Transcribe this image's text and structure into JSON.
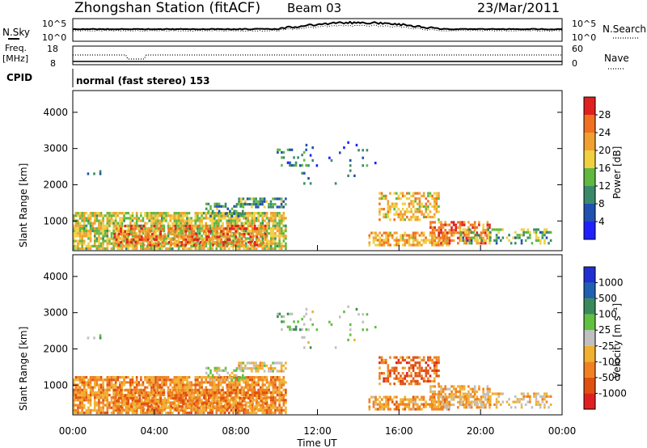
{
  "header": {
    "title": "Zhongshan Station (fitACF)",
    "beam": "Beam 03",
    "date": "23/Mar/2011"
  },
  "strip_labels": {
    "nsky": "N.Sky",
    "nsky_top": "10^5",
    "nsky_bottom": "10^0",
    "nsearch": "N.Search",
    "nsearch_top": "10^5",
    "nsearch_bottom": "10^0",
    "freq_line1": "Freq.",
    "freq_line2": "[MHz]",
    "freq_top": "18",
    "freq_bottom": "8",
    "nave": "Nave",
    "nave_top": "60",
    "nave_bottom": "0",
    "cpid": "CPID",
    "cpid_value": "normal (fast stereo) 153"
  },
  "chart_data": [
    {
      "type": "heatmap",
      "name": "power",
      "ylabel": "Slant Range [km]",
      "yticks": [
        "1000",
        "2000",
        "3000",
        "4000"
      ],
      "ytick_values": [
        1000,
        2000,
        3000,
        4000
      ],
      "ylim": [
        180,
        4600
      ],
      "colorbar_label": "Power [dB]",
      "colorbar_ticks": [
        "4",
        "8",
        "12",
        "16",
        "20",
        "24",
        "28"
      ],
      "colorbar_tick_values": [
        4,
        8,
        12,
        16,
        20,
        24,
        28
      ],
      "colors": [
        "#2020ff",
        "#2050b0",
        "#3a8a6a",
        "#60b840",
        "#f0d040",
        "#f0a030",
        "#f07020",
        "#e02020"
      ],
      "scale": [
        0,
        32
      ]
    },
    {
      "type": "heatmap",
      "name": "velocity",
      "ylabel": "Slant Range [km]",
      "yticks": [
        "1000",
        "2000",
        "3000",
        "4000"
      ],
      "ytick_values": [
        1000,
        2000,
        3000,
        4000
      ],
      "ylim": [
        180,
        4600
      ],
      "colorbar_label": "Velocity [m s⁻¹]",
      "colorbar_ticks": [
        "1000",
        "500",
        "100",
        "25",
        "-25",
        "-100",
        "-500",
        "-1000"
      ],
      "colors": [
        "#2030d0",
        "#2060b0",
        "#3a8a5a",
        "#60c040",
        "#c0c0c0",
        "#f0b030",
        "#f08020",
        "#e05010",
        "#e02020"
      ]
    }
  ],
  "time_axis": {
    "label": "Time UT",
    "ticks": [
      "00:00",
      "04:00",
      "08:00",
      "12:00",
      "16:00",
      "20:00",
      "00:00"
    ],
    "tick_hours": [
      0,
      4,
      8,
      12,
      16,
      20,
      24
    ]
  }
}
